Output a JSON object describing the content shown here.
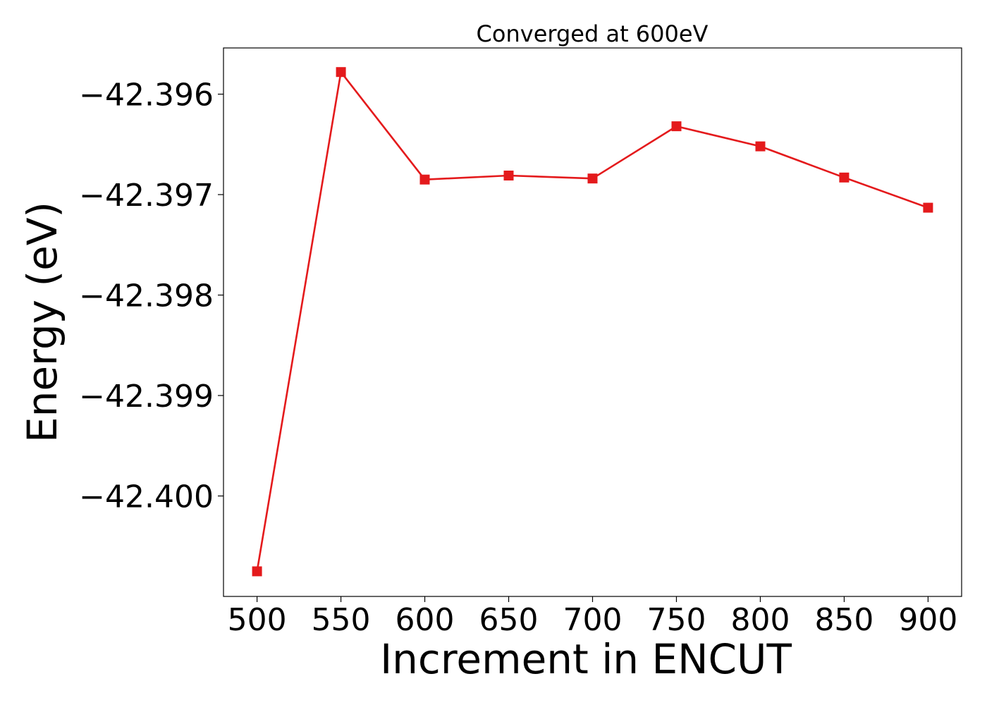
{
  "chart_data": {
    "type": "line",
    "title": "Converged at 600eV",
    "xlabel": "Increment in ENCUT",
    "ylabel": "Energy (eV)",
    "x": [
      500,
      550,
      600,
      650,
      700,
      750,
      800,
      850,
      900
    ],
    "series": [
      {
        "values": [
          -42.40075,
          -42.39578,
          -42.39685,
          -42.39681,
          -42.39684,
          -42.39632,
          -42.39652,
          -42.39683,
          -42.39713
        ],
        "color": "#e41a1c",
        "marker": "square"
      }
    ],
    "xticks": [
      500,
      550,
      600,
      650,
      700,
      750,
      800,
      850,
      900
    ],
    "xtick_labels": [
      "500",
      "550",
      "600",
      "650",
      "700",
      "750",
      "800",
      "850",
      "900"
    ],
    "yticks": [
      -42.396,
      -42.397,
      -42.398,
      -42.399,
      -42.4
    ],
    "ytick_labels": [
      "−42.396",
      "−42.397",
      "−42.398",
      "−42.399",
      "−42.400"
    ],
    "xlim": [
      480,
      920
    ],
    "ylim": [
      -42.401,
      -42.39554
    ],
    "grid": false,
    "legend": "none"
  }
}
